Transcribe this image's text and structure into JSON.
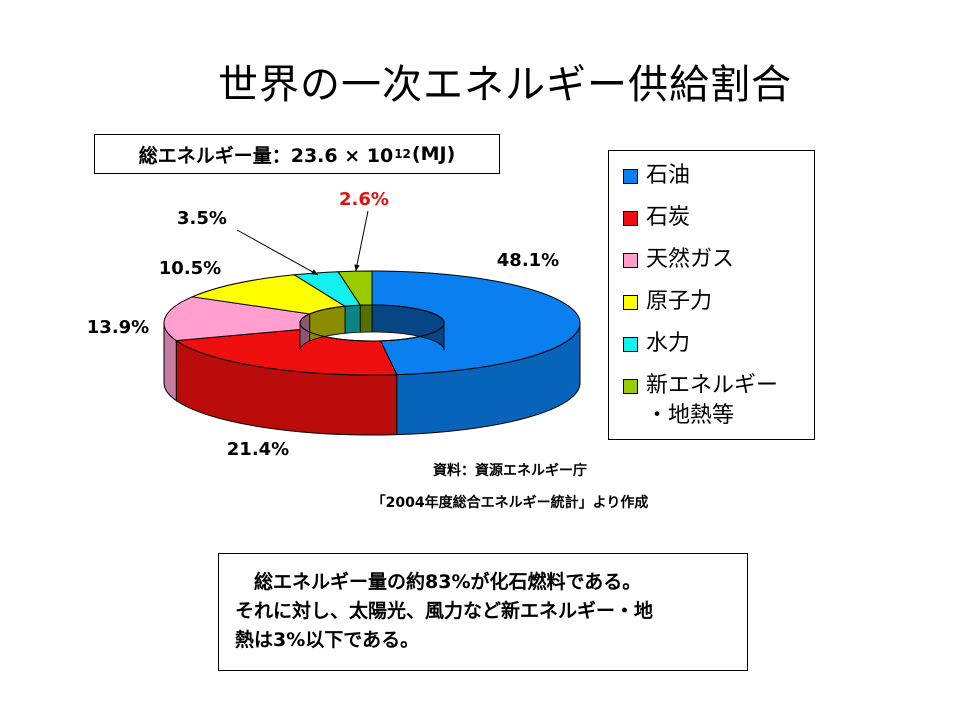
{
  "title": "世界の一次エネルギー供給割合",
  "total": {
    "prefix": "総エネルギー量：23.6 × 10",
    "exponent": "12",
    "suffix": "(MJ)"
  },
  "legend": {
    "items": [
      {
        "label": "石油",
        "color": "#0a7ff0"
      },
      {
        "label": "石炭",
        "color": "#f00f0f"
      },
      {
        "label": "天然ガス",
        "color": "#ff9ecf"
      },
      {
        "label": "原子力",
        "color": "#ffff00"
      },
      {
        "label": "水力",
        "color": "#12f0f0"
      },
      {
        "label": "新エネルギー\n・地熱等",
        "color": "#99cc00"
      }
    ]
  },
  "source": {
    "line1": "資料：資源エネルギー庁",
    "line2": "「2004年度総合エネルギー統計」より作成"
  },
  "note": {
    "line1": "　総エネルギー量の約83%が化石燃料である。",
    "line2": "それに対し、太陽光、風力など新エネルギー・地",
    "line3": "熱は3%以下である。"
  },
  "chart_data": {
    "type": "pie",
    "style": "3d-doughnut",
    "categories": [
      "石油",
      "石炭",
      "天然ガス",
      "原子力",
      "水力",
      "新エネルギー・地熱等"
    ],
    "values": [
      48.1,
      21.4,
      13.9,
      10.5,
      3.5,
      2.6
    ],
    "data_labels": [
      "48.1%",
      "21.4%",
      "13.9%",
      "10.5%",
      "3.5%",
      "2.6%"
    ],
    "label_colors": [
      "#000000",
      "#000000",
      "#000000",
      "#000000",
      "#000000",
      "#e01010"
    ],
    "colors": [
      "#0a7ff0",
      "#f00f0f",
      "#ff9ecf",
      "#ffff00",
      "#12f0f0",
      "#99cc00"
    ],
    "legend_position": "right"
  }
}
